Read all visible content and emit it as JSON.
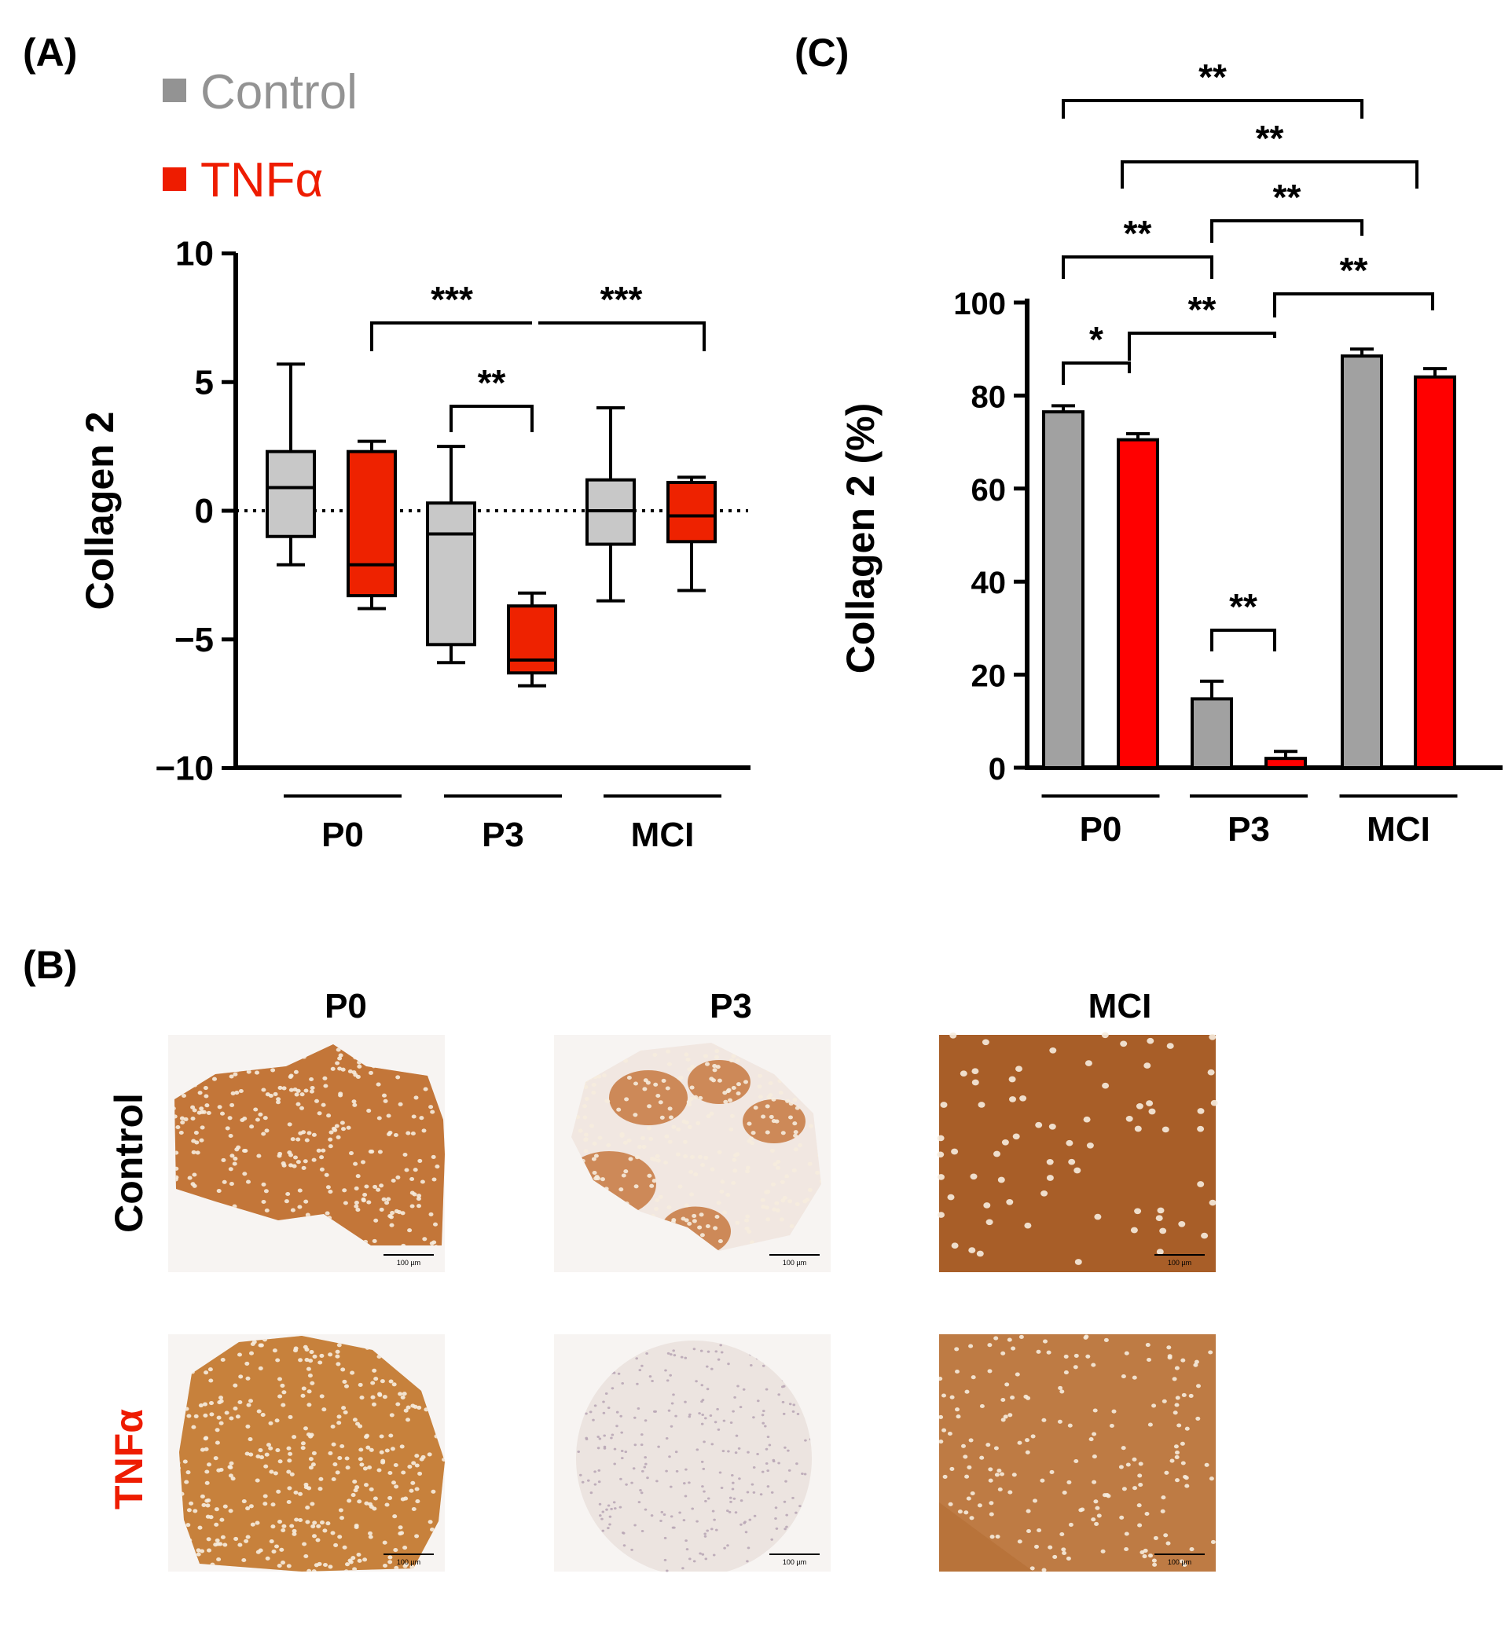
{
  "panel_labels": {
    "a": "(A)",
    "b": "(B)",
    "c": "(C)"
  },
  "legend": [
    {
      "label": "Control",
      "color": "#939393"
    },
    {
      "label": "TNFα",
      "color": "#ee1c00"
    }
  ],
  "chart_data": [
    {
      "type": "box",
      "panel": "(A)",
      "ylabel": "Collagen 2",
      "ylim": [
        -10,
        10
      ],
      "yticks": [
        10,
        5,
        0,
        -5,
        -10
      ],
      "ytick_labels": [
        "10",
        "5",
        "0",
        "−5",
        "−10"
      ],
      "reference_line_y": 0,
      "groups": [
        "P0",
        "P3",
        "MCI"
      ],
      "series": [
        {
          "name": "Control",
          "color": "#c8c8c8",
          "boxes": [
            {
              "group": "P0",
              "min": -2.1,
              "q1": -1.0,
              "median": 0.9,
              "q3": 2.3,
              "max": 5.7
            },
            {
              "group": "P3",
              "min": -5.9,
              "q1": -5.2,
              "median": -0.9,
              "q3": 0.3,
              "max": 2.5
            },
            {
              "group": "MCI",
              "min": -3.5,
              "q1": -1.3,
              "median": 0.0,
              "q3": 1.2,
              "max": 4.0
            }
          ]
        },
        {
          "name": "TNFα",
          "color": "#ee2200",
          "boxes": [
            {
              "group": "P0",
              "min": -3.8,
              "q1": -3.3,
              "median": -2.1,
              "q3": 2.3,
              "max": 2.7
            },
            {
              "group": "P3",
              "min": -6.8,
              "q1": -6.3,
              "median": -5.8,
              "q3": -3.7,
              "max": -3.2
            },
            {
              "group": "MCI",
              "min": -3.1,
              "q1": -1.2,
              "median": -0.2,
              "q3": 1.1,
              "max": 1.3
            }
          ]
        }
      ],
      "significance": [
        {
          "from": "P0 TNFα",
          "to": "P3 TNFα",
          "label": "***"
        },
        {
          "from": "P3 TNFα",
          "to": "MCI TNFα",
          "label": "***"
        },
        {
          "from": "P3 Control",
          "to": "P3 TNFα",
          "label": "**"
        }
      ]
    },
    {
      "type": "bar",
      "panel": "(C)",
      "ylabel": "Collagen 2 (%)",
      "ylim": [
        0,
        100
      ],
      "yticks": [
        0,
        20,
        40,
        60,
        80,
        100
      ],
      "ytick_labels": [
        "0",
        "20",
        "40",
        "60",
        "80",
        "100"
      ],
      "categories": [
        "P0",
        "P3",
        "MCI"
      ],
      "series": [
        {
          "name": "Control",
          "color": "#a1a1a1",
          "values": [
            76.5,
            14.8,
            88.5
          ],
          "errors": [
            1.3,
            3.8,
            1.5
          ]
        },
        {
          "name": "TNFα",
          "color": "#ff0000",
          "values": [
            70.5,
            2.0,
            84.0
          ],
          "errors": [
            1.3,
            1.5,
            1.8
          ]
        }
      ],
      "significance": [
        {
          "from": "P0 Control",
          "to": "MCI Control",
          "label": "**"
        },
        {
          "from": "P0 TNFα",
          "to": "MCI TNFα",
          "label": "**"
        },
        {
          "from": "P3 Control",
          "to": "MCI Control",
          "label": "**"
        },
        {
          "from": "P0 Control",
          "to": "P3 Control",
          "label": "**"
        },
        {
          "from": "P3 TNFα",
          "to": "MCI TNFα",
          "label": "**"
        },
        {
          "from": "P0 TNFα",
          "to": "P3 TNFα",
          "label": "**"
        },
        {
          "from": "P0 Control",
          "to": "P0 TNFα",
          "label": "*"
        },
        {
          "from": "P3 Control",
          "to": "P3 TNFα",
          "label": "**"
        }
      ]
    }
  ],
  "micrographs": {
    "columns": [
      "P0",
      "P3",
      "MCI"
    ],
    "rows": [
      {
        "label": "Control",
        "color": "#000000"
      },
      {
        "label": "TNFα",
        "color": "#ee1c00"
      }
    ],
    "scale_bar_label": "100 µm",
    "cells": [
      {
        "name": "p0-control",
        "row": "Control",
        "column": "P0",
        "stain": "dense",
        "tone": "#bc6a2c",
        "tone_light": "#d69a5e",
        "cell_density": "high"
      },
      {
        "name": "p3-control",
        "row": "Control",
        "column": "P3",
        "stain": "patchy",
        "tone": "#c0692a",
        "tone_light": "#f1e7e1",
        "cell_density": "high"
      },
      {
        "name": "mci-control",
        "row": "Control",
        "column": "MCI",
        "stain": "uniform",
        "tone": "#a55a25",
        "tone_light": "#b46a33",
        "cell_density": "low"
      },
      {
        "name": "p0-tnfa",
        "row": "TNFα",
        "column": "P0",
        "stain": "dense",
        "tone": "#c07734",
        "tone_light": "#dba055",
        "cell_density": "high"
      },
      {
        "name": "p3-tnfa",
        "row": "TNFα",
        "column": "P3",
        "stain": "none",
        "tone": "#ece4e0",
        "tone_light": "#f5f0ed",
        "cell_density": "high"
      },
      {
        "name": "mci-tnfa",
        "row": "TNFα",
        "column": "MCI",
        "stain": "uniform",
        "tone": "#b8733a",
        "tone_light": "#cf9563",
        "cell_density": "medium"
      }
    ]
  }
}
